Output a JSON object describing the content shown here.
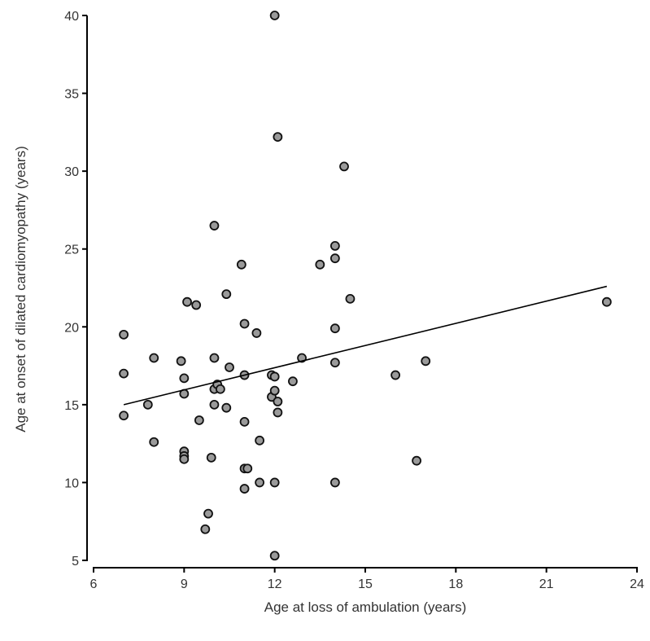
{
  "chart_data": {
    "type": "scatter",
    "title": "",
    "xlabel": "Age at loss of ambulation (years)",
    "ylabel": "Age at onset of dilated cardiomyopathy (years)",
    "xlim": [
      6,
      24
    ],
    "ylim": [
      5,
      40
    ],
    "xticks": [
      6,
      9,
      12,
      15,
      18,
      21,
      24
    ],
    "yticks": [
      5,
      10,
      15,
      20,
      25,
      30,
      35,
      40
    ],
    "grid": false,
    "legend": "none",
    "marker_fill": "#9a9a9a",
    "marker_edge": "#111111",
    "line_color": "#000000",
    "series": [
      {
        "points": [
          [
            7,
            19.5
          ],
          [
            7,
            17
          ],
          [
            7,
            14.3
          ],
          [
            7.8,
            15
          ],
          [
            8,
            18
          ],
          [
            8,
            12.6
          ],
          [
            8.9,
            17.8
          ],
          [
            9,
            16.7
          ],
          [
            9,
            15.7
          ],
          [
            9,
            12
          ],
          [
            9,
            11.7
          ],
          [
            9,
            11.5
          ],
          [
            9.1,
            21.6
          ],
          [
            9.4,
            21.4
          ],
          [
            9.5,
            14
          ],
          [
            9.7,
            7
          ],
          [
            9.8,
            8
          ],
          [
            9.9,
            11.6
          ],
          [
            10,
            26.5
          ],
          [
            10,
            18
          ],
          [
            10,
            16
          ],
          [
            10,
            15
          ],
          [
            10.1,
            16.3
          ],
          [
            10.2,
            16
          ],
          [
            10.4,
            22.1
          ],
          [
            10.4,
            14.8
          ],
          [
            10.5,
            17.4
          ],
          [
            10.9,
            24
          ],
          [
            11,
            20.2
          ],
          [
            11,
            16.9
          ],
          [
            11,
            13.9
          ],
          [
            11,
            10.9
          ],
          [
            11,
            9.6
          ],
          [
            11.1,
            10.9
          ],
          [
            11.4,
            19.6
          ],
          [
            11.5,
            12.7
          ],
          [
            11.5,
            10
          ],
          [
            11.9,
            16.9
          ],
          [
            11.9,
            15.5
          ],
          [
            12,
            40
          ],
          [
            12,
            16.8
          ],
          [
            12,
            15.9
          ],
          [
            12,
            10
          ],
          [
            12,
            5.3
          ],
          [
            12.1,
            32.2
          ],
          [
            12.1,
            15.2
          ],
          [
            12.1,
            14.5
          ],
          [
            12.6,
            16.5
          ],
          [
            12.9,
            18
          ],
          [
            13.5,
            24
          ],
          [
            14,
            25.2
          ],
          [
            14,
            24.4
          ],
          [
            14,
            19.9
          ],
          [
            14,
            17.7
          ],
          [
            14,
            10
          ],
          [
            14.3,
            30.3
          ],
          [
            14.5,
            21.8
          ],
          [
            16,
            16.9
          ],
          [
            16.7,
            11.4
          ],
          [
            17,
            17.8
          ],
          [
            23,
            21.6
          ]
        ]
      }
    ],
    "trendline": {
      "x": [
        7,
        23
      ],
      "y": [
        15,
        22.6
      ]
    }
  }
}
